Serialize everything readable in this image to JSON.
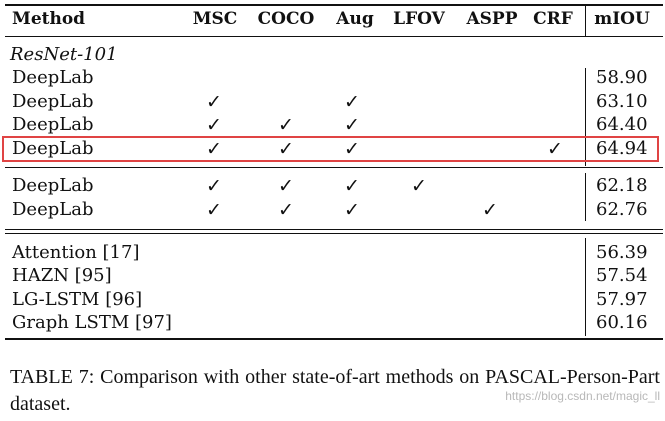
{
  "table": {
    "headers": {
      "method": "Method",
      "msc": "MSC",
      "coco": "COCO",
      "aug": "Aug",
      "lfov": "LFOV",
      "aspp": "ASPP",
      "crf": "CRF",
      "miou": "mIOU"
    },
    "section_label": "ResNet-101",
    "checkmark": "✓",
    "rows_group1": [
      {
        "method": "DeepLab",
        "checks": [],
        "miou": "58.90"
      },
      {
        "method": "DeepLab",
        "checks": [
          "msc",
          "aug"
        ],
        "miou": "63.10"
      },
      {
        "method": "DeepLab",
        "checks": [
          "msc",
          "coco",
          "aug"
        ],
        "miou": "64.40"
      },
      {
        "method": "DeepLab",
        "checks": [
          "msc",
          "coco",
          "aug",
          "crf"
        ],
        "miou": "64.94"
      }
    ],
    "rows_group2": [
      {
        "method": "DeepLab",
        "checks": [
          "msc",
          "coco",
          "aug",
          "lfov"
        ],
        "miou": "62.18"
      },
      {
        "method": "DeepLab",
        "checks": [
          "msc",
          "coco",
          "aug",
          "aspp"
        ],
        "miou": "62.76"
      }
    ],
    "rows_group3": [
      {
        "method": "Attention [17]",
        "miou": "56.39"
      },
      {
        "method": "HAZN [95]",
        "miou": "57.54"
      },
      {
        "method": "LG-LSTM [96]",
        "miou": "57.97"
      },
      {
        "method": "Graph LSTM [97]",
        "miou": "60.16"
      }
    ],
    "highlight_color": "#e04444"
  },
  "caption": "TABLE 7: Comparison with other state-of-art methods on PASCAL-Person-Part dataset.",
  "watermark": "https://blog.csdn.net/magic_ll"
}
